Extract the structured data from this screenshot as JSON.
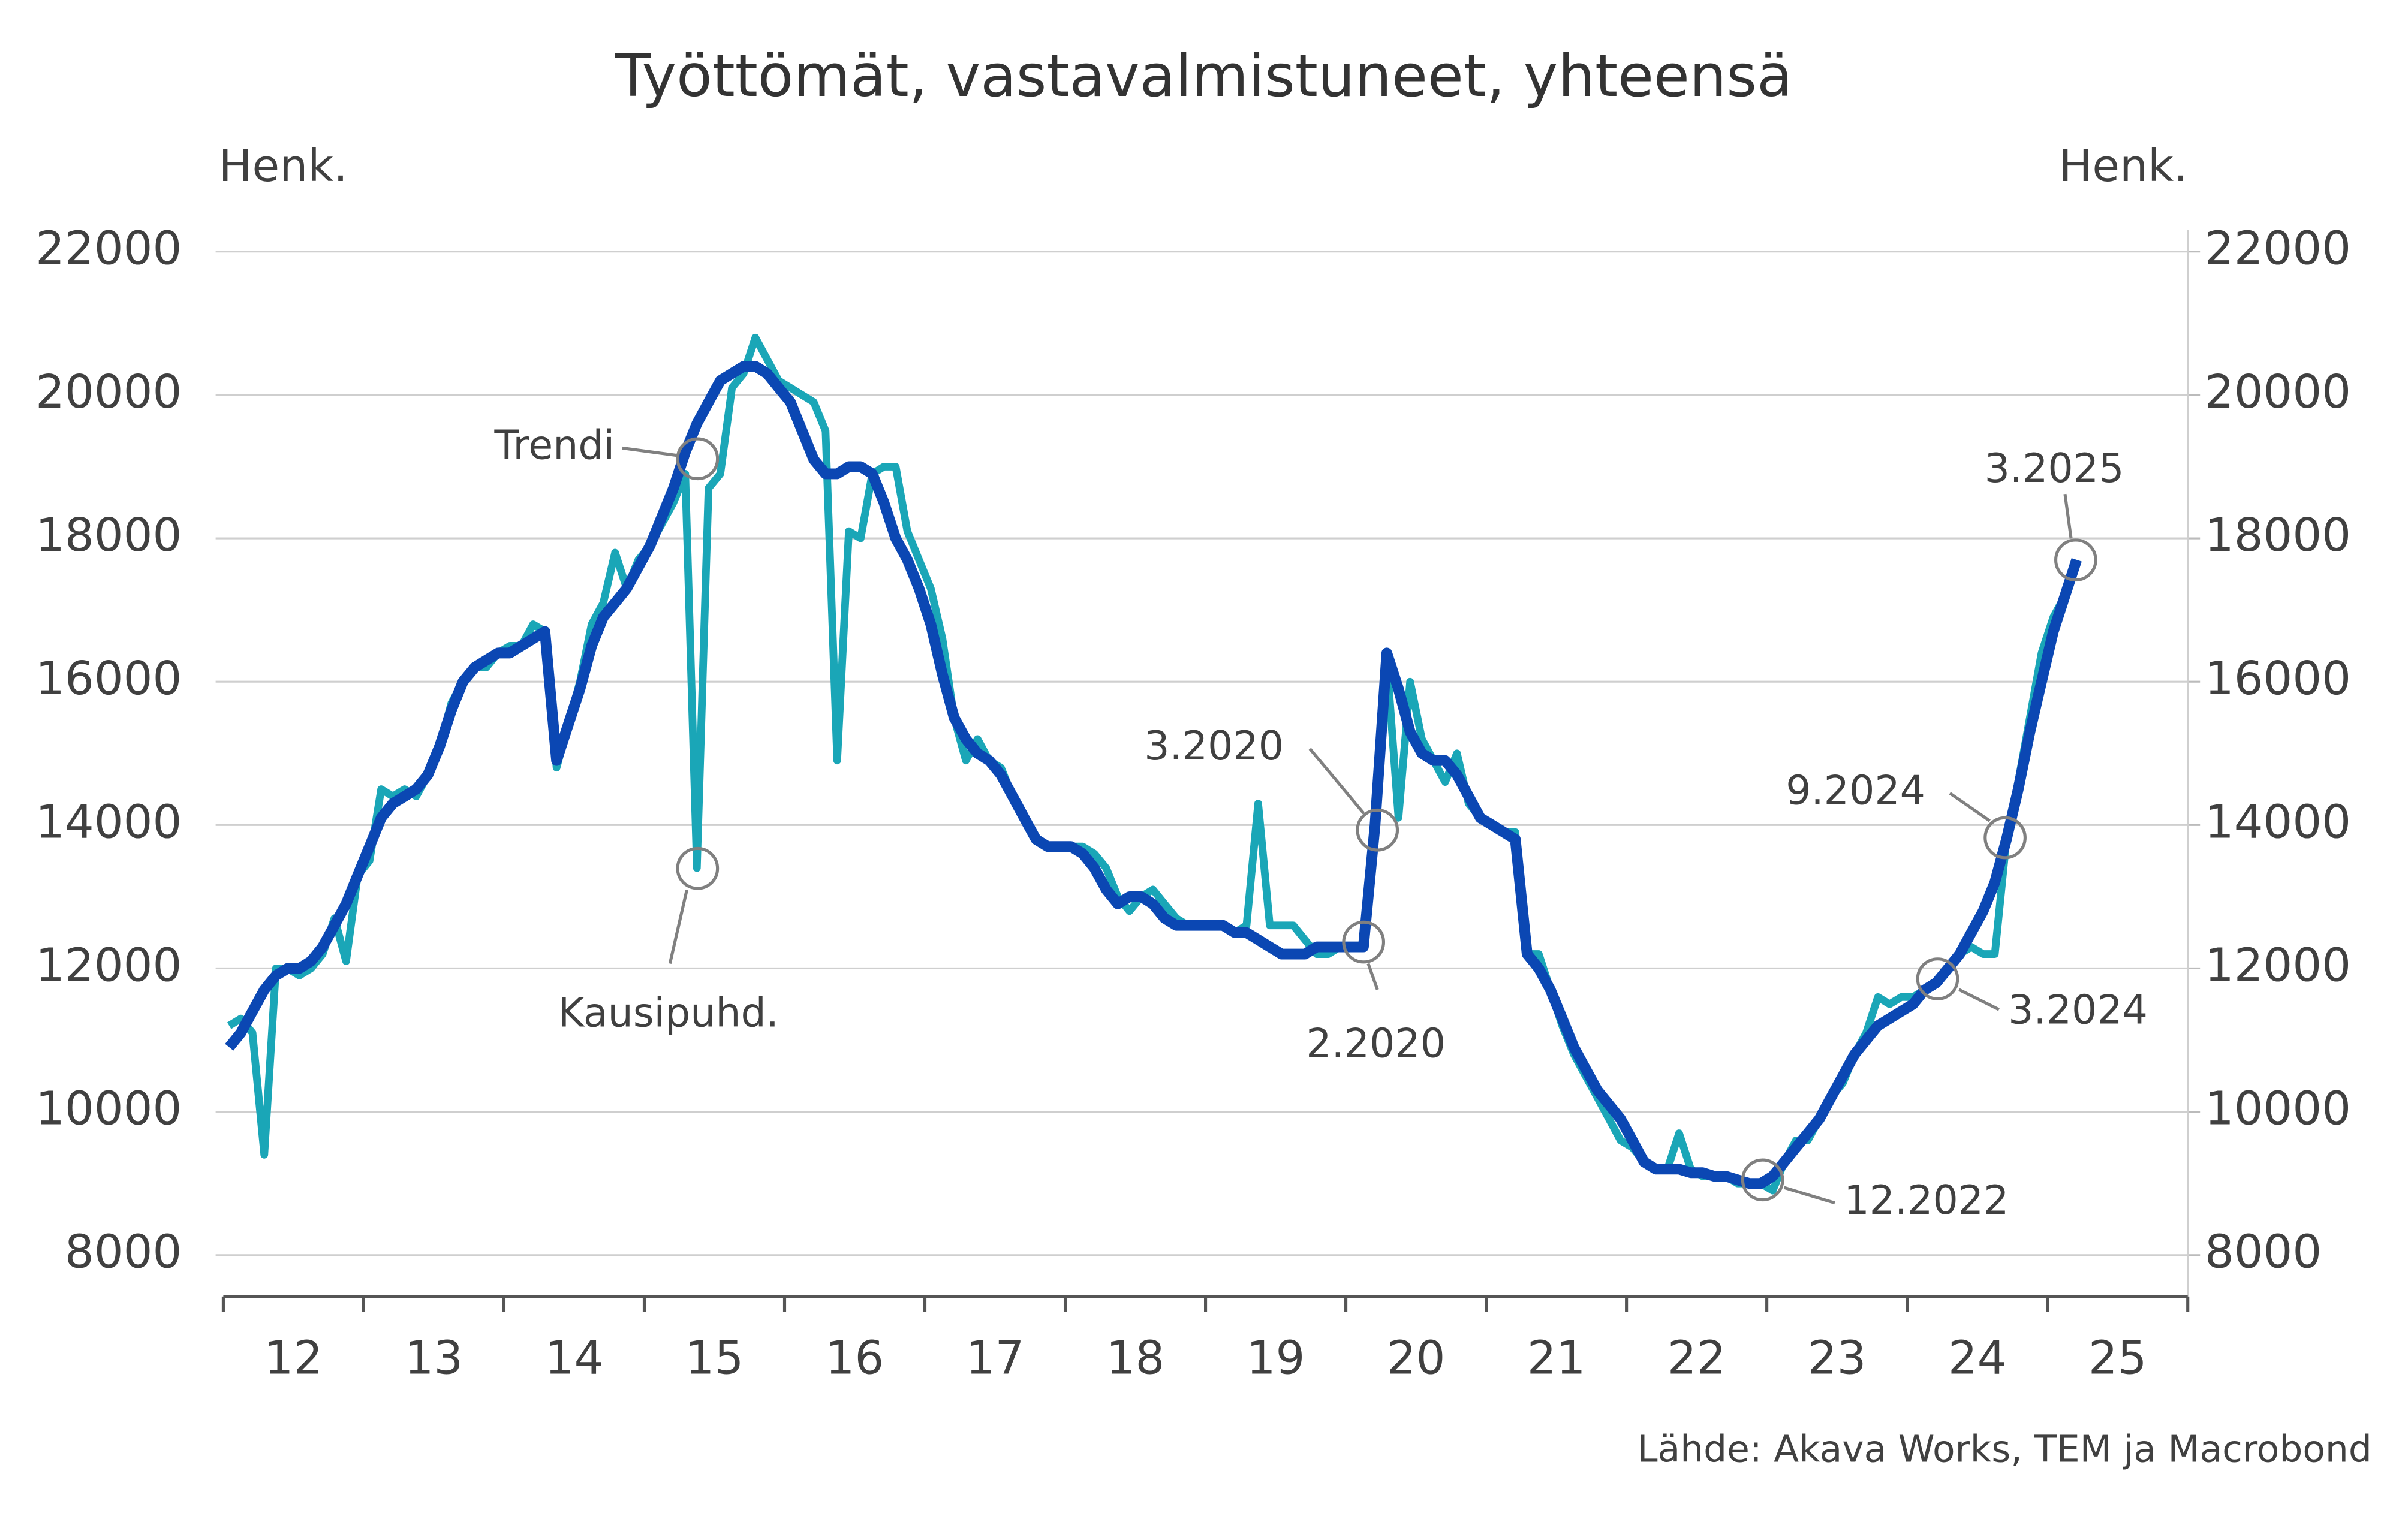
{
  "chart_data": {
    "type": "line",
    "title": "Työttömät, vastavalmistuneet, yhteensä",
    "y_label": "Henk.",
    "y2_label": "Henk.",
    "source": "Lähde: Akava Works, TEM ja Macrobond",
    "xlim": [
      12,
      26
    ],
    "xticks": [
      {
        "value": 12.5,
        "label": "12"
      },
      {
        "value": 13.5,
        "label": "13"
      },
      {
        "value": 14.5,
        "label": "14"
      },
      {
        "value": 15.5,
        "label": "15"
      },
      {
        "value": 16.5,
        "label": "16"
      },
      {
        "value": 17.5,
        "label": "17"
      },
      {
        "value": 18.5,
        "label": "18"
      },
      {
        "value": 19.5,
        "label": "19"
      },
      {
        "value": 20.5,
        "label": "20"
      },
      {
        "value": 21.5,
        "label": "21"
      },
      {
        "value": 22.5,
        "label": "22"
      },
      {
        "value": 23.5,
        "label": "23"
      },
      {
        "value": 24.5,
        "label": "24"
      },
      {
        "value": 25.5,
        "label": "25"
      }
    ],
    "ylim": [
      8000,
      22000
    ],
    "yticks": [
      8000,
      10000,
      12000,
      14000,
      16000,
      18000,
      20000,
      22000
    ],
    "y2lim": [
      8000,
      22000
    ],
    "y2ticks": [
      8000,
      10000,
      12000,
      14000,
      16000,
      18000,
      20000,
      22000
    ],
    "grid": true,
    "x": [
      12.042,
      12.125,
      12.208,
      12.292,
      12.375,
      12.458,
      12.542,
      12.625,
      12.708,
      12.792,
      12.875,
      12.958,
      13.042,
      13.125,
      13.208,
      13.292,
      13.375,
      13.458,
      13.542,
      13.625,
      13.708,
      13.792,
      13.875,
      13.958,
      14.042,
      14.125,
      14.208,
      14.292,
      14.375,
      14.458,
      14.542,
      14.625,
      14.708,
      14.792,
      14.875,
      14.958,
      15.042,
      15.125,
      15.208,
      15.292,
      15.375,
      15.458,
      15.542,
      15.625,
      15.708,
      15.792,
      15.875,
      15.958,
      16.042,
      16.125,
      16.208,
      16.292,
      16.375,
      16.458,
      16.542,
      16.625,
      16.708,
      16.792,
      16.875,
      16.958,
      17.042,
      17.125,
      17.208,
      17.292,
      17.375,
      17.458,
      17.542,
      17.625,
      17.708,
      17.792,
      17.875,
      17.958,
      18.042,
      18.125,
      18.208,
      18.292,
      18.375,
      18.458,
      18.542,
      18.625,
      18.708,
      18.792,
      18.875,
      18.958,
      19.042,
      19.125,
      19.208,
      19.292,
      19.375,
      19.458,
      19.542,
      19.625,
      19.708,
      19.792,
      19.875,
      19.958,
      20.042,
      20.125,
      20.208,
      20.292,
      20.375,
      20.458,
      20.542,
      20.625,
      20.708,
      20.792,
      20.875,
      20.958,
      21.042,
      21.125,
      21.208,
      21.292,
      21.375,
      21.458,
      21.542,
      21.625,
      21.708,
      21.792,
      21.875,
      21.958,
      22.042,
      22.125,
      22.208,
      22.292,
      22.375,
      22.458,
      22.542,
      22.625,
      22.708,
      22.792,
      22.875,
      22.958,
      23.042,
      23.125,
      23.208,
      23.292,
      23.375,
      23.458,
      23.542,
      23.625,
      23.708,
      23.792,
      23.875,
      23.958,
      24.042,
      24.125,
      24.208,
      24.292,
      24.375,
      24.458,
      24.542,
      24.625,
      24.708,
      24.792,
      24.875,
      24.958,
      25.042,
      25.125,
      25.208
    ],
    "series": [
      {
        "name": "Kausipuhd.",
        "color": "#1aa6b7",
        "width": 5,
        "values": [
          11200,
          11300,
          11100,
          9400,
          12000,
          12000,
          11900,
          12000,
          12200,
          12700,
          12100,
          13300,
          13500,
          14500,
          14400,
          14500,
          14400,
          14700,
          15100,
          15700,
          16000,
          16200,
          16200,
          16400,
          16500,
          16500,
          16800,
          16700,
          14800,
          15400,
          16000,
          16800,
          17100,
          17800,
          17300,
          17700,
          17900,
          18200,
          18500,
          18900,
          13400,
          18700,
          18900,
          20100,
          20300,
          20800,
          20500,
          20200,
          20100,
          20000,
          19900,
          19500,
          14900,
          18100,
          18000,
          18900,
          19000,
          19000,
          18100,
          17700,
          17300,
          16600,
          15500,
          14900,
          15200,
          14900,
          14800,
          14400,
          14100,
          13800,
          13700,
          13700,
          13700,
          13700,
          13600,
          13400,
          13000,
          12800,
          13000,
          13100,
          12900,
          12700,
          12600,
          12600,
          12600,
          12600,
          12500,
          12600,
          14300,
          12600,
          12600,
          12600,
          12400,
          12200,
          12200,
          12300,
          12300,
          12300,
          13900,
          16300,
          14100,
          16000,
          15200,
          14900,
          14600,
          15000,
          14300,
          14100,
          14000,
          13900,
          13900,
          12200,
          12200,
          11700,
          11200,
          10800,
          10500,
          10200,
          9900,
          9600,
          9500,
          9300,
          9200,
          9200,
          9700,
          9200,
          9100,
          9100,
          9100,
          9000,
          9000,
          9000,
          8900,
          9300,
          9600,
          9600,
          9900,
          10200,
          10400,
          10800,
          11100,
          11600,
          11500,
          11600,
          11600,
          11700,
          11800,
          12000,
          12200,
          12300,
          12200,
          12200,
          13800,
          14600,
          15500,
          16400,
          16900,
          17200,
          17700
        ]
      },
      {
        "name": "Trendi",
        "color": "#0b47b3",
        "width": 7,
        "values": [
          10900,
          11100,
          11400,
          11700,
          11900,
          12000,
          12000,
          12100,
          12300,
          12600,
          12900,
          13300,
          13700,
          14100,
          14300,
          14400,
          14500,
          14700,
          15100,
          15600,
          16000,
          16200,
          16300,
          16400,
          16400,
          16500,
          16600,
          16700,
          14900,
          15400,
          15900,
          16500,
          16900,
          17100,
          17300,
          17600,
          17900,
          18300,
          18700,
          19200,
          19600,
          19900,
          20200,
          20300,
          20400,
          20400,
          20300,
          20100,
          19900,
          19500,
          19100,
          18900,
          18900,
          19000,
          19000,
          18900,
          18500,
          18000,
          17700,
          17300,
          16800,
          16100,
          15500,
          15200,
          15000,
          14900,
          14700,
          14400,
          14100,
          13800,
          13700,
          13700,
          13700,
          13600,
          13400,
          13100,
          12900,
          13000,
          13000,
          12900,
          12700,
          12600,
          12600,
          12600,
          12600,
          12600,
          12500,
          12500,
          12400,
          12300,
          12200,
          12200,
          12200,
          12300,
          12300,
          12300,
          12300,
          12300,
          14000,
          16400,
          15900,
          15300,
          15000,
          14900,
          14900,
          14700,
          14400,
          14100,
          14000,
          13900,
          13800,
          12200,
          12000,
          11700,
          11300,
          10900,
          10600,
          10300,
          10100,
          9900,
          9600,
          9300,
          9200,
          9200,
          9200,
          9150,
          9150,
          9100,
          9100,
          9050,
          9000,
          9000,
          9100,
          9300,
          9500,
          9700,
          9900,
          10200,
          10500,
          10800,
          11000,
          11200,
          11300,
          11400,
          11500,
          11700,
          11800,
          12000,
          12200,
          12500,
          12800,
          13200,
          13800,
          14500,
          15300,
          16000,
          16700,
          17200,
          17700
        ]
      }
    ],
    "annotations": [
      {
        "text": "Trendi"
      },
      {
        "text": "Kausipuhd."
      },
      {
        "text": "3.2020"
      },
      {
        "text": "2.2020"
      },
      {
        "text": "12.2022"
      },
      {
        "text": "3.2024"
      },
      {
        "text": "9.2024"
      },
      {
        "text": "3.2025"
      }
    ]
  }
}
